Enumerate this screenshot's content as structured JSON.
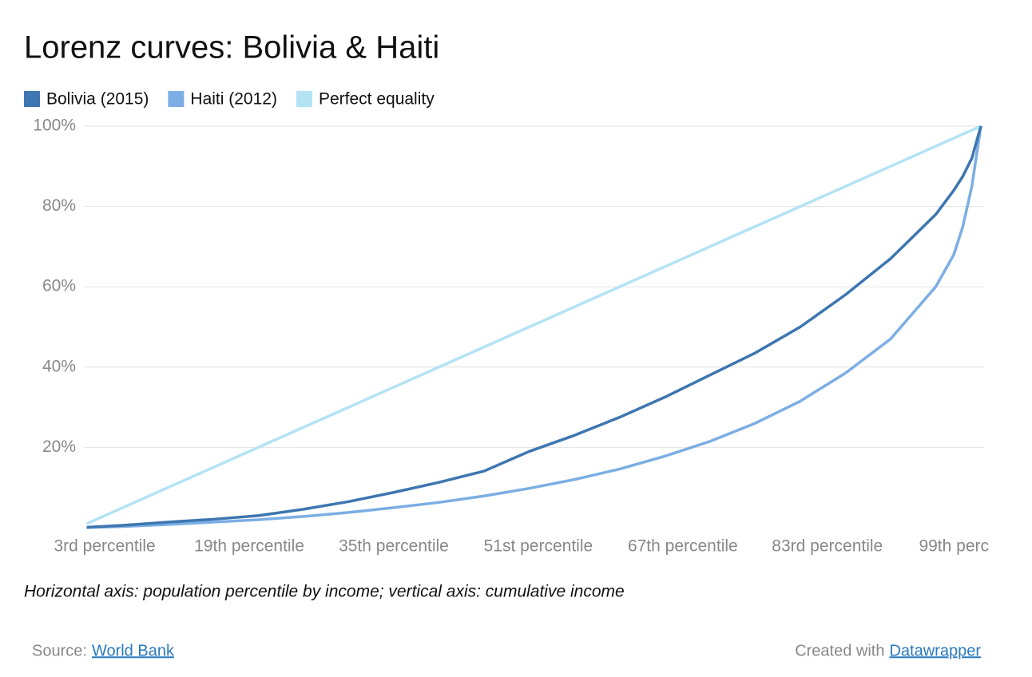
{
  "chart_data": {
    "type": "line",
    "title": "Lorenz curves: Bolivia & Haiti",
    "x": [
      1,
      5,
      10,
      15,
      20,
      25,
      30,
      35,
      40,
      45,
      50,
      55,
      60,
      65,
      70,
      75,
      80,
      85,
      90,
      95,
      97,
      98,
      99,
      100
    ],
    "xlim": [
      1,
      100
    ],
    "xticks": [
      {
        "value": 3,
        "label": "3rd percentile"
      },
      {
        "value": 19,
        "label": "19th percentile"
      },
      {
        "value": 35,
        "label": "35th percentile"
      },
      {
        "value": 51,
        "label": "51st percentile"
      },
      {
        "value": 67,
        "label": "67th percentile"
      },
      {
        "value": 83,
        "label": "83rd percentile"
      },
      {
        "value": 99,
        "label": "99th perc"
      }
    ],
    "ylim": [
      0,
      100
    ],
    "yticks": [
      {
        "value": 20,
        "label": "20%"
      },
      {
        "value": 40,
        "label": "40%"
      },
      {
        "value": 60,
        "label": "60%"
      },
      {
        "value": 80,
        "label": "80%"
      },
      {
        "value": 100,
        "label": "100%"
      }
    ],
    "grid": true,
    "series": [
      {
        "name": "Bolivia (2015)",
        "color": "#3d76b0",
        "values": [
          0.1,
          0.6,
          1.4,
          2.1,
          3.0,
          4.6,
          6.5,
          8.8,
          11.3,
          14.1,
          19,
          23,
          27.5,
          32.5,
          38,
          43.5,
          50,
          58,
          67,
          78,
          84,
          87.5,
          92,
          100
        ]
      },
      {
        "name": "Haiti (2012)",
        "color": "#7baee4",
        "values": [
          0.05,
          0.3,
          0.8,
          1.4,
          2.0,
          2.8,
          3.8,
          5.0,
          6.3,
          7.9,
          9.8,
          12,
          14.6,
          17.8,
          21.5,
          26,
          31.5,
          38.5,
          47,
          60,
          68,
          75,
          85,
          100
        ]
      },
      {
        "name": "Perfect equality",
        "color": "#b3e3f5",
        "values": [
          1,
          5,
          10,
          15,
          20,
          25,
          30,
          35,
          40,
          45,
          50,
          55,
          60,
          65,
          70,
          75,
          80,
          85,
          90,
          95,
          97,
          98,
          99,
          100
        ]
      }
    ],
    "note": "Horizontal axis: population percentile by income; vertical axis: cumulative income"
  },
  "footer": {
    "source_label": "Source:",
    "source_link": "World Bank",
    "credit_label": "Created with",
    "credit_link": "Datawrapper"
  }
}
